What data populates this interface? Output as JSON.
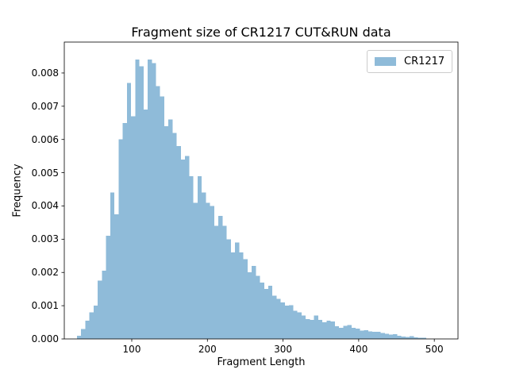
{
  "chart_data": {
    "type": "bar",
    "subtype": "histogram",
    "title": "Fragment size of CR1217 CUT&RUN data",
    "xlabel": "Fragment Length",
    "ylabel": "Frequency",
    "legend": {
      "label": "CR1217",
      "position": "upper right"
    },
    "bar_color": "#8fbbd9",
    "spine_color": "#000000",
    "legend_border_color": "#cccccc",
    "grid": false,
    "xlim": [
      10.8,
      531.3
    ],
    "ylim": [
      0,
      0.00893
    ],
    "xticks": [
      100,
      200,
      300,
      400,
      500
    ],
    "xtick_labels": [
      "100",
      "200",
      "300",
      "400",
      "500"
    ],
    "ytick_values": [
      0,
      0.001,
      0.002,
      0.003,
      0.004,
      0.005,
      0.006,
      0.007,
      0.008
    ],
    "ytick_labels": [
      "0.000",
      "0.001",
      "0.002",
      "0.003",
      "0.004",
      "0.005",
      "0.006",
      "0.007",
      "0.008"
    ],
    "bins": {
      "start": 27.5,
      "width": 5.5
    },
    "values": [
      0.0001,
      0.0003,
      0.00055,
      0.0008,
      0.001,
      0.00175,
      0.00205,
      0.0031,
      0.0044,
      0.00375,
      0.006,
      0.0065,
      0.0077,
      0.0067,
      0.0084,
      0.0082,
      0.0069,
      0.0084,
      0.0083,
      0.0076,
      0.0073,
      0.0064,
      0.0066,
      0.0062,
      0.0058,
      0.0054,
      0.0055,
      0.0049,
      0.0041,
      0.0049,
      0.0044,
      0.0041,
      0.004,
      0.0034,
      0.0037,
      0.0034,
      0.003,
      0.0026,
      0.0029,
      0.0026,
      0.0024,
      0.002,
      0.0022,
      0.0019,
      0.0017,
      0.0015,
      0.0016,
      0.0013,
      0.0012,
      0.0011,
      0.001,
      0.00101,
      0.00085,
      0.0008,
      0.0007,
      0.0006,
      0.00057,
      0.0007,
      0.00057,
      0.0005,
      0.00055,
      0.00053,
      0.00038,
      0.00033,
      0.00039,
      0.00042,
      0.00033,
      0.00031,
      0.00025,
      0.00026,
      0.00023,
      0.00022,
      0.00021,
      0.00018,
      0.00015,
      0.00013,
      0.00014,
      0.0001,
      7e-05,
      6e-05,
      8e-05,
      5e-05,
      4e-05,
      3e-05
    ]
  }
}
